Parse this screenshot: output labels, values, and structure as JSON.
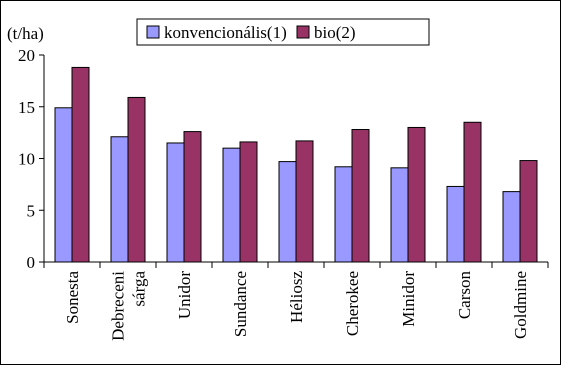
{
  "chart_data": {
    "type": "bar",
    "ylabel": "(t/ha)",
    "ylim": [
      0,
      20
    ],
    "yticks": [
      0,
      5,
      10,
      15,
      20
    ],
    "grid": false,
    "legend_position": "top",
    "categories": [
      [
        "Sonesta"
      ],
      [
        "Debreceni",
        "sárga"
      ],
      [
        "Unidor"
      ],
      [
        "Sundance"
      ],
      [
        "Héliosz"
      ],
      [
        "Cherokee"
      ],
      [
        "Minidor"
      ],
      [
        "Carson"
      ],
      [
        "Goldmine"
      ]
    ],
    "series": [
      {
        "name": "konvencionális(1)",
        "color": "#9999ff",
        "values": [
          14.9,
          12.1,
          11.5,
          11.0,
          9.7,
          9.2,
          9.1,
          7.3,
          6.8
        ]
      },
      {
        "name": "bio(2)",
        "color": "#993366",
        "values": [
          18.8,
          15.9,
          12.6,
          11.6,
          11.7,
          12.8,
          13.0,
          13.5,
          9.8
        ]
      }
    ]
  }
}
